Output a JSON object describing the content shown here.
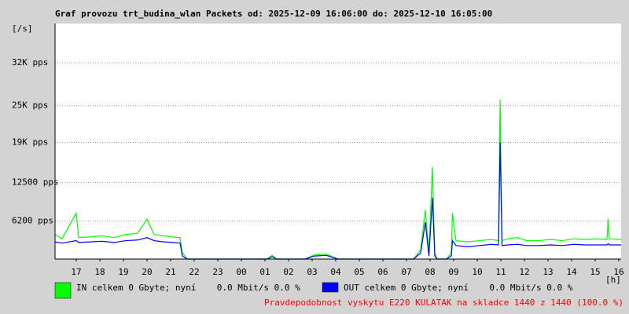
{
  "chart_data": {
    "type": "line",
    "title": "Graf provozu trt_budina_wlan Packets od: 2025-12-09 16:06:00 do: 2025-12-10 16:05:00",
    "y_label": "[/s]",
    "x_label": "[h]",
    "footer": "Pravdepodobnost vyskytu E220 KULATAK na skladce 1440 z 1440 (100.0 %)",
    "grid": true,
    "xlim": [
      0,
      24
    ],
    "xticks": [
      {
        "value": 0.9,
        "label": "17"
      },
      {
        "value": 1.9,
        "label": "18"
      },
      {
        "value": 2.9,
        "label": "19"
      },
      {
        "value": 3.9,
        "label": "20"
      },
      {
        "value": 4.9,
        "label": "21"
      },
      {
        "value": 5.9,
        "label": "22"
      },
      {
        "value": 6.9,
        "label": "23"
      },
      {
        "value": 7.9,
        "label": "00"
      },
      {
        "value": 8.9,
        "label": "01"
      },
      {
        "value": 9.9,
        "label": "02"
      },
      {
        "value": 10.9,
        "label": "03"
      },
      {
        "value": 11.9,
        "label": "04"
      },
      {
        "value": 12.9,
        "label": "05"
      },
      {
        "value": 13.9,
        "label": "06"
      },
      {
        "value": 14.9,
        "label": "07"
      },
      {
        "value": 15.9,
        "label": "08"
      },
      {
        "value": 16.9,
        "label": "09"
      },
      {
        "value": 17.9,
        "label": "10"
      },
      {
        "value": 18.9,
        "label": "11"
      },
      {
        "value": 19.9,
        "label": "12"
      },
      {
        "value": 20.9,
        "label": "13"
      },
      {
        "value": 21.9,
        "label": "14"
      },
      {
        "value": 22.9,
        "label": "15"
      },
      {
        "value": 23.9,
        "label": "16"
      }
    ],
    "ylim": [
      0,
      38400
    ],
    "yticks": [
      {
        "value": 6200,
        "label": "6200 pps"
      },
      {
        "value": 12500,
        "label": "12500 pps"
      },
      {
        "value": 19000,
        "label": "19K pps"
      },
      {
        "value": 25000,
        "label": "25K pps"
      },
      {
        "value": 32000,
        "label": "32K pps"
      }
    ],
    "x": [
      0,
      0.3,
      0.9,
      1.0,
      1.5,
      2.0,
      2.5,
      3.0,
      3.5,
      3.9,
      4.2,
      4.6,
      5.0,
      5.3,
      5.4,
      5.6,
      9.0,
      9.2,
      9.4,
      10.6,
      11.0,
      11.5,
      12.0,
      15.2,
      15.5,
      15.7,
      15.85,
      16.0,
      16.1,
      16.2,
      16.35,
      16.6,
      16.8,
      16.85,
      17.0,
      17.5,
      18.0,
      18.5,
      18.8,
      18.87,
      18.95,
      19.2,
      19.6,
      20.0,
      20.5,
      21.0,
      21.5,
      22.0,
      22.5,
      23.0,
      23.4,
      23.45,
      23.5,
      24.0
    ],
    "series": [
      {
        "name": "IN celkem 0 Gbyte; nyní    0.0 Mbit/s 0.0 %",
        "color": "#00ff00",
        "values": [
          4000,
          3300,
          7500,
          3500,
          3600,
          3800,
          3500,
          4000,
          4200,
          6500,
          4000,
          3800,
          3600,
          3500,
          1000,
          0,
          0,
          600,
          0,
          0,
          700,
          800,
          0,
          0,
          1500,
          8000,
          1000,
          15000,
          1000,
          0,
          0,
          0,
          1000,
          7500,
          3000,
          2800,
          3000,
          3200,
          3000,
          26000,
          3000,
          3300,
          3500,
          3000,
          3000,
          3200,
          3000,
          3300,
          3200,
          3300,
          3200,
          6500,
          3300,
          3200
        ]
      },
      {
        "name": "OUT celkem 0 Gbyte; nyní    0.0 Mbit/s 0.0 %",
        "color": "#0000ff",
        "values": [
          2800,
          2600,
          3000,
          2700,
          2800,
          2900,
          2700,
          3000,
          3100,
          3500,
          3000,
          2800,
          2700,
          2600,
          500,
          0,
          0,
          400,
          0,
          0,
          500,
          600,
          0,
          0,
          1000,
          6000,
          500,
          10000,
          500,
          0,
          0,
          0,
          500,
          3000,
          2200,
          2000,
          2200,
          2400,
          2300,
          19000,
          2200,
          2300,
          2400,
          2200,
          2200,
          2300,
          2200,
          2400,
          2300,
          2300,
          2300,
          2500,
          2300,
          2300
        ]
      }
    ]
  }
}
